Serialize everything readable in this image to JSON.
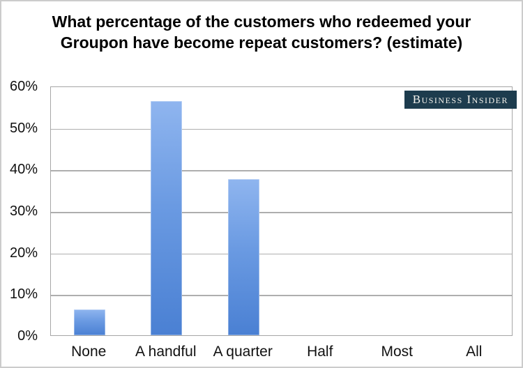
{
  "page": {
    "background": "#ffffff",
    "frame_border_color": "#cccccc"
  },
  "badge": {
    "label": "Business Insider",
    "background": "#1d3c4e",
    "text_color": "#f4f2ec"
  },
  "chart_data": {
    "type": "bar",
    "title": "What percentage of the customers who redeemed your Groupon have become repeat customers? (estimate)",
    "title_lines": [
      "What percentage of the customers who redeemed your",
      "Groupon have become repeat customers? (estimate)"
    ],
    "categories": [
      "None",
      "A handful",
      "A quarter",
      "Half",
      "Most",
      "All"
    ],
    "values": [
      6.25,
      56.25,
      37.5,
      0,
      0,
      0
    ],
    "xlabel": "",
    "ylabel": "",
    "ylim": [
      0,
      60
    ],
    "ytick_step": 10,
    "ytick_labels": [
      "0%",
      "10%",
      "20%",
      "30%",
      "40%",
      "50%",
      "60%"
    ],
    "grid": true,
    "legend": false,
    "colors": {
      "bar_gradient_top": "#8fb5ef",
      "bar_gradient_mid": "#6a9ae2",
      "bar_gradient_bottom": "#4a80d3",
      "gridline": "#aeaeae",
      "plot_border": "#a6a6a6",
      "axis_text": "#111111",
      "title_text": "#000000"
    }
  }
}
